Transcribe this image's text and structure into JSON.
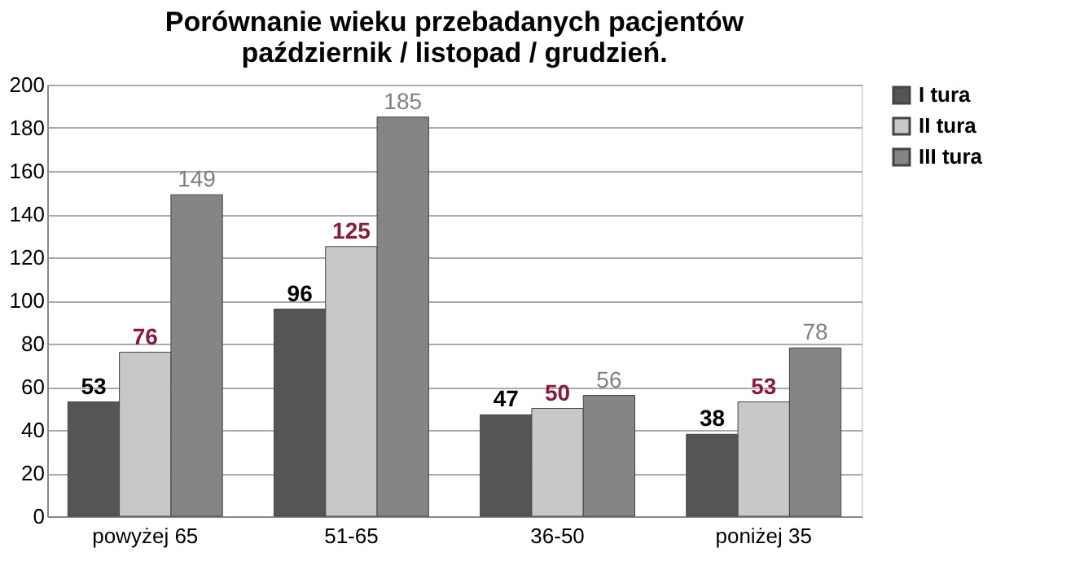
{
  "chart_data": {
    "type": "bar",
    "title": "Porównanie wieku przebadanych pacjentów\npaździernik / listopad / grudzień.",
    "categories": [
      "powyżej 65",
      "51-65",
      "36-50",
      "poniżej 35"
    ],
    "series": [
      {
        "name": "I tura",
        "color": "#555555",
        "values": [
          53,
          96,
          47,
          38
        ]
      },
      {
        "name": "II tura",
        "color": "#c8c8c8",
        "values": [
          76,
          125,
          50,
          53
        ]
      },
      {
        "name": "III tura",
        "color": "#858585",
        "values": [
          149,
          185,
          56,
          78
        ]
      }
    ],
    "ylim": [
      0,
      200
    ],
    "yticks": [
      0,
      20,
      40,
      60,
      80,
      100,
      120,
      140,
      160,
      180,
      200
    ],
    "grid": "y",
    "legend": "right",
    "data_labels": true
  }
}
